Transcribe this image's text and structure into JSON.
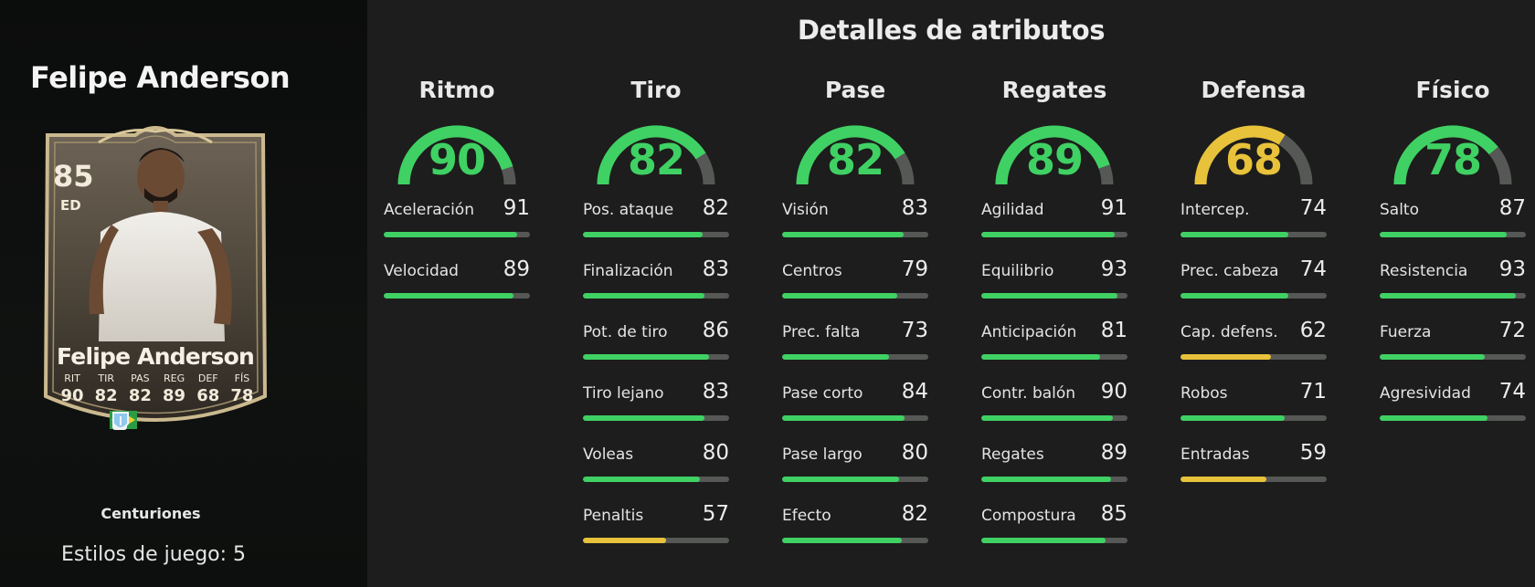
{
  "player": {
    "name": "Felipe Anderson",
    "promo": "Centuriones",
    "playstyles_text": "Estilos de juego: 5"
  },
  "card": {
    "rating": "85",
    "position": "ED",
    "name": "Felipe Anderson",
    "stats": [
      {
        "label": "RIT",
        "value": "90"
      },
      {
        "label": "TIR",
        "value": "82"
      },
      {
        "label": "PAS",
        "value": "82"
      },
      {
        "label": "REG",
        "value": "89"
      },
      {
        "label": "DEF",
        "value": "68"
      },
      {
        "label": "FÍS",
        "value": "78"
      }
    ],
    "icons": [
      "brazil-flag-icon",
      "league-badge-icon",
      "club-crest-icon"
    ]
  },
  "section_title": "Detalles de atributos",
  "colors": {
    "green": "#3fd163",
    "yellow": "#e8c23a",
    "track": "#565856"
  },
  "categories": [
    {
      "title": "Ritmo",
      "value": 90,
      "color": "green",
      "stats": [
        {
          "name": "Aceleración",
          "value": 91
        },
        {
          "name": "Velocidad",
          "value": 89
        }
      ]
    },
    {
      "title": "Tiro",
      "value": 82,
      "color": "green",
      "stats": [
        {
          "name": "Pos. ataque",
          "value": 82
        },
        {
          "name": "Finalización",
          "value": 83
        },
        {
          "name": "Pot. de tiro",
          "value": 86
        },
        {
          "name": "Tiro lejano",
          "value": 83
        },
        {
          "name": "Voleas",
          "value": 80
        },
        {
          "name": "Penaltis",
          "value": 57
        }
      ]
    },
    {
      "title": "Pase",
      "value": 82,
      "color": "green",
      "stats": [
        {
          "name": "Visión",
          "value": 83
        },
        {
          "name": "Centros",
          "value": 79
        },
        {
          "name": "Prec. falta",
          "value": 73
        },
        {
          "name": "Pase corto",
          "value": 84
        },
        {
          "name": "Pase largo",
          "value": 80
        },
        {
          "name": "Efecto",
          "value": 82
        }
      ]
    },
    {
      "title": "Regates",
      "value": 89,
      "color": "green",
      "stats": [
        {
          "name": "Agilidad",
          "value": 91
        },
        {
          "name": "Equilibrio",
          "value": 93
        },
        {
          "name": "Anticipación",
          "value": 81
        },
        {
          "name": "Contr. balón",
          "value": 90
        },
        {
          "name": "Regates",
          "value": 89
        },
        {
          "name": "Compostura",
          "value": 85
        }
      ]
    },
    {
      "title": "Defensa",
      "value": 68,
      "color": "yellow",
      "stats": [
        {
          "name": "Intercep.",
          "value": 74
        },
        {
          "name": "Prec. cabeza",
          "value": 74
        },
        {
          "name": "Cap. defens.",
          "value": 62
        },
        {
          "name": "Robos",
          "value": 71
        },
        {
          "name": "Entradas",
          "value": 59
        }
      ]
    },
    {
      "title": "Físico",
      "value": 78,
      "color": "green",
      "stats": [
        {
          "name": "Salto",
          "value": 87
        },
        {
          "name": "Resistencia",
          "value": 93
        },
        {
          "name": "Fuerza",
          "value": 72
        },
        {
          "name": "Agresividad",
          "value": 74
        }
      ]
    }
  ]
}
